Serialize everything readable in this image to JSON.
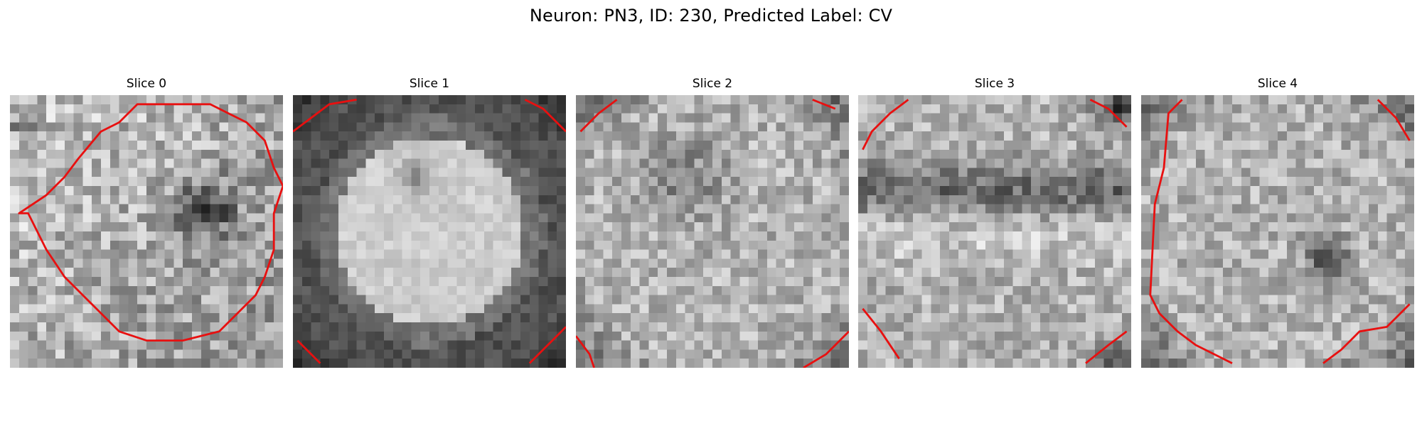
{
  "title": "Neuron: PN3, ID: 230, Predicted Label: CV",
  "slices": [
    {
      "title": "Slice 0",
      "icon": "grayscale-micrograph",
      "pattern": "bright-top-left, dark-right"
    },
    {
      "title": "Slice 1",
      "icon": "grayscale-micrograph",
      "pattern": "bright-round-cell-center, dark-corners"
    },
    {
      "title": "Slice 2",
      "icon": "grayscale-micrograph",
      "pattern": "mottled-bright, dark-corners"
    },
    {
      "title": "Slice 3",
      "icon": "grayscale-micrograph",
      "pattern": "bright-center-band, dark-right-corners"
    },
    {
      "title": "Slice 4",
      "icon": "grayscale-micrograph",
      "pattern": "bright-top, dark-corners"
    }
  ],
  "colors": {
    "contour": "#e81010",
    "background": "#ffffff"
  }
}
